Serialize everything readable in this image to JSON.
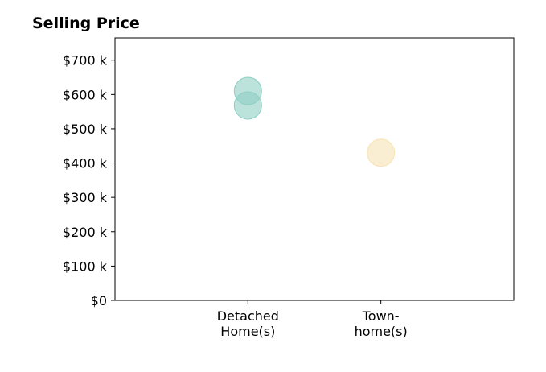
{
  "chart_data": {
    "type": "scatter",
    "title": "Selling Price",
    "xlabel": "",
    "ylabel": "",
    "categories": [
      [
        "Detached",
        "Home(s)"
      ],
      [
        "Town-",
        "home(s)"
      ]
    ],
    "xlim": [
      0,
      3
    ],
    "ylim": [
      0,
      765000
    ],
    "yticks": [
      0,
      100000,
      200000,
      300000,
      400000,
      500000,
      600000,
      700000
    ],
    "ytick_labels": [
      "$0",
      "$100 k",
      "$200 k",
      "$300 k",
      "$400 k",
      "$500 k",
      "$600 k",
      "$700 k"
    ],
    "grid": false,
    "series": [
      {
        "color": "#8ecfc3",
        "points": [
          {
            "x": 1,
            "y": 610000
          },
          {
            "x": 1,
            "y": 568000
          }
        ]
      },
      {
        "color": "#f7e3b4",
        "points": [
          {
            "x": 2,
            "y": 430000
          }
        ]
      }
    ]
  }
}
